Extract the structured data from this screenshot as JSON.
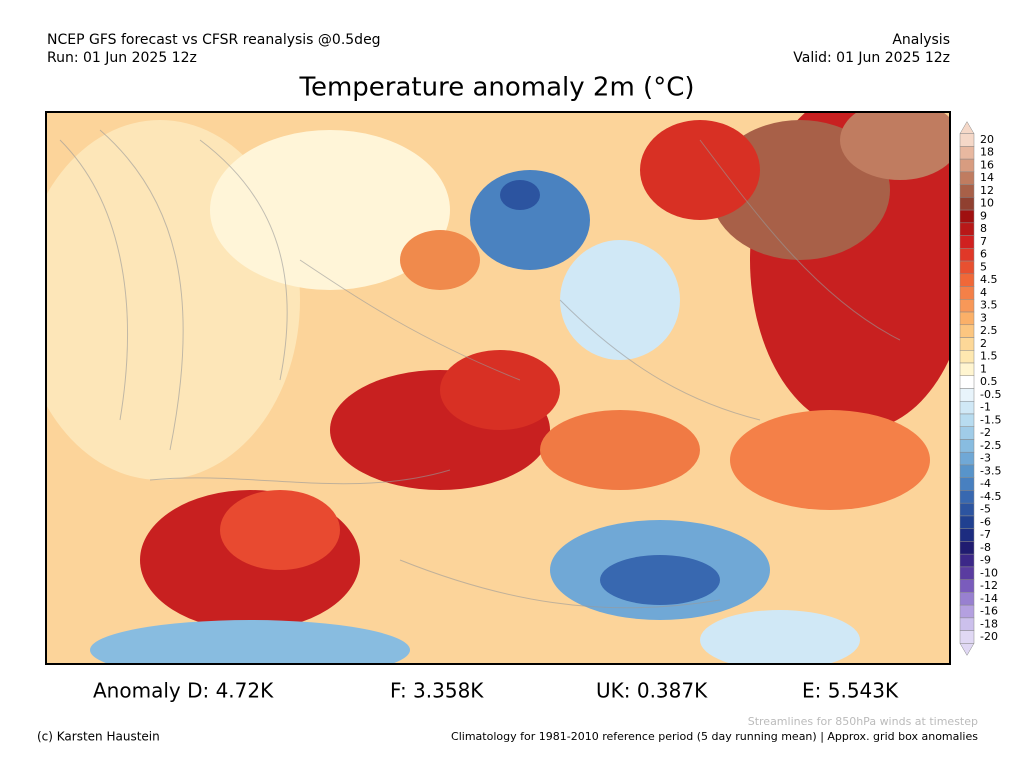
{
  "header": {
    "left": [
      "NCEP GFS forecast vs CFSR reanalysis @0.5deg",
      "Run: 01 Jun 2025 12z"
    ],
    "right": [
      "Analysis",
      "Valid: 01 Jun 2025 12z"
    ]
  },
  "title": "Temperature anomaly 2m (°C)",
  "colorbar": {
    "levels": [
      {
        "value": 20,
        "color": "#f5d8c8"
      },
      {
        "value": 18,
        "color": "#e8b8a0"
      },
      {
        "value": 16,
        "color": "#d89c80"
      },
      {
        "value": 14,
        "color": "#c07c60"
      },
      {
        "value": 12,
        "color": "#a86048"
      },
      {
        "value": 10,
        "color": "#904030"
      },
      {
        "value": 9,
        "color": "#a01010"
      },
      {
        "value": 8,
        "color": "#b81818"
      },
      {
        "value": 7,
        "color": "#d02020"
      },
      {
        "value": 6,
        "color": "#e03828"
      },
      {
        "value": 5,
        "color": "#e85030"
      },
      {
        "value": 4.5,
        "color": "#f06838"
      },
      {
        "value": 4,
        "color": "#f48048"
      },
      {
        "value": 3.5,
        "color": "#f89858"
      },
      {
        "value": 3,
        "color": "#fbb068"
      },
      {
        "value": 2.5,
        "color": "#fcc680"
      },
      {
        "value": 2,
        "color": "#fdd898"
      },
      {
        "value": 1.5,
        "color": "#fee8b0"
      },
      {
        "value": 1,
        "color": "#fff5d0"
      },
      {
        "value": 0.5,
        "color": "#ffffff"
      },
      {
        "value": -0.5,
        "color": "#e8f4fb"
      },
      {
        "value": -1,
        "color": "#d0e8f6"
      },
      {
        "value": -1.5,
        "color": "#b8dcf0"
      },
      {
        "value": -2,
        "color": "#a0cce8"
      },
      {
        "value": -2.5,
        "color": "#88bce0"
      },
      {
        "value": -3,
        "color": "#70a8d6"
      },
      {
        "value": -3.5,
        "color": "#5894ca"
      },
      {
        "value": -4,
        "color": "#4880c0"
      },
      {
        "value": -4.5,
        "color": "#3868b0"
      },
      {
        "value": -5,
        "color": "#2c54a0"
      },
      {
        "value": -6,
        "color": "#204090"
      },
      {
        "value": -7,
        "color": "#1c2c80"
      },
      {
        "value": -8,
        "color": "#201c70"
      },
      {
        "value": -9,
        "color": "#3c2888"
      },
      {
        "value": -10,
        "color": "#5a3ca0"
      },
      {
        "value": -12,
        "color": "#7a5cbc"
      },
      {
        "value": -14,
        "color": "#9880d0"
      },
      {
        "value": -16,
        "color": "#b4a0e0"
      },
      {
        "value": -18,
        "color": "#ccc0ec"
      },
      {
        "value": -20,
        "color": "#e0d8f4"
      }
    ]
  },
  "stats": [
    "Anomaly D: 4.72K",
    "F: 3.358K",
    "UK: 0.387K",
    "E: 5.543K"
  ],
  "footer": {
    "credit": "(c) Karsten Haustein",
    "streamlines": "Streamlines for 850hPa winds at timestep",
    "climatology": "Climatology for 1981-2010 reference period (5 day running mean) | Approx. grid box anomalies"
  }
}
